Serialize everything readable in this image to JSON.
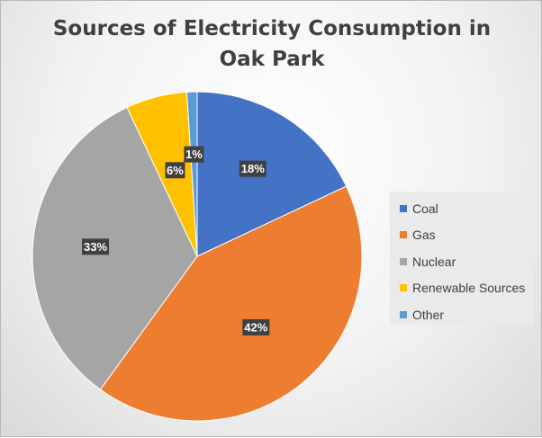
{
  "chart_data": {
    "type": "pie",
    "title": "Sources of Electricity Consumption in Oak Park",
    "title_lines": [
      "Sources of Electricity Consumption in",
      "Oak Park"
    ],
    "categories": [
      "Coal",
      "Gas",
      "Nuclear",
      "Renewable Sources",
      "Other"
    ],
    "values": [
      18,
      42,
      33,
      6,
      1
    ],
    "data_labels": [
      "18%",
      "42%",
      "33%",
      "6%",
      "1%"
    ],
    "colors": [
      "#4472C4",
      "#ED7D31",
      "#A5A5A5",
      "#FFC000",
      "#5B9BD5"
    ],
    "legend_position": "right",
    "start_angle": "12 o'clock, clockwise"
  }
}
